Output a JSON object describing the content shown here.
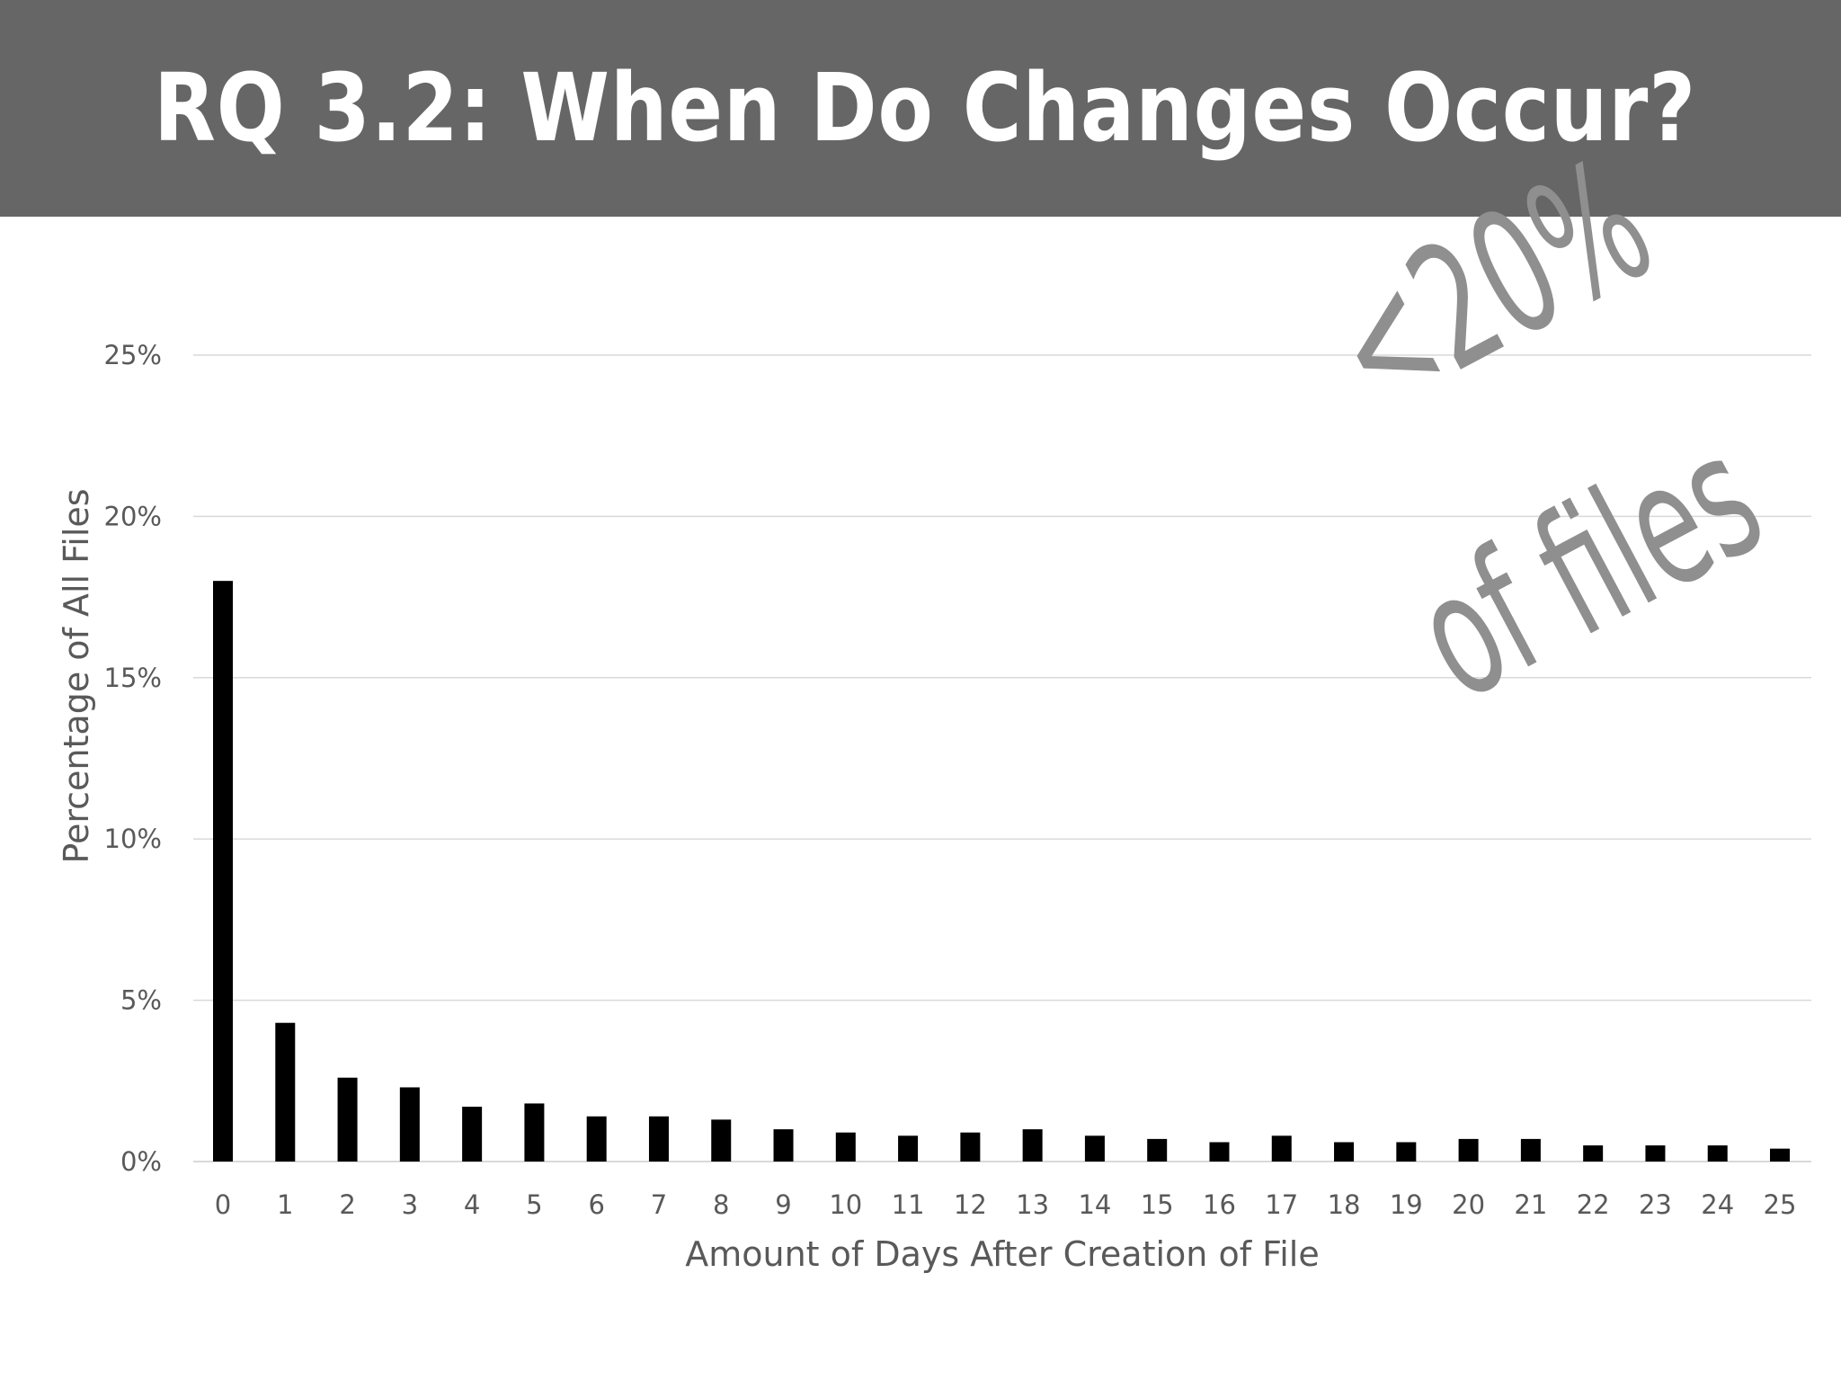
{
  "slide": {
    "title": "RQ 3.2: When Do Changes Occur?",
    "annotation_line1": "<20%",
    "annotation_line2": "of files",
    "colors": {
      "title_bar": "#666666",
      "title_text": "#ffffff",
      "bars": "#000000",
      "annotation": "#8f8f8f",
      "gridlines": "#d9d9d9",
      "axis_text": "#595959"
    }
  },
  "chart_data": {
    "type": "bar",
    "title": "",
    "xlabel": "Amount of Days After Creation of File",
    "ylabel": "Percentage of All Files",
    "categories": [
      "0",
      "1",
      "2",
      "3",
      "4",
      "5",
      "6",
      "7",
      "8",
      "9",
      "10",
      "11",
      "12",
      "13",
      "14",
      "15",
      "16",
      "17",
      "18",
      "19",
      "20",
      "21",
      "22",
      "23",
      "24",
      "25"
    ],
    "values": [
      18.0,
      4.3,
      2.6,
      2.3,
      1.7,
      1.8,
      1.4,
      1.4,
      1.3,
      1.0,
      0.9,
      0.8,
      0.9,
      1.0,
      0.8,
      0.7,
      0.6,
      0.8,
      0.6,
      0.6,
      0.7,
      0.7,
      0.5,
      0.5,
      0.5,
      0.4
    ],
    "ylim": [
      0,
      25
    ],
    "yticks": [
      0,
      5,
      10,
      15,
      20,
      25
    ],
    "ytick_labels": [
      "0%",
      "5%",
      "10%",
      "15%",
      "20%",
      "25%"
    ],
    "grid": true,
    "legend": "none"
  }
}
